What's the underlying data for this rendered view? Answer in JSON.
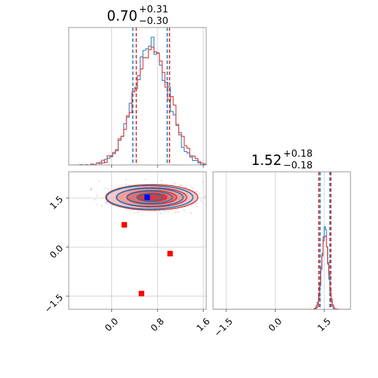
{
  "chart_data": {
    "type": "corner",
    "colors": {
      "series_a": "#1f77b4",
      "series_b": "#d62728",
      "marker_truth": "#0000ff",
      "marker_other": "#ff0000"
    },
    "parameters": [
      {
        "id": "p1",
        "title_value": "0.70",
        "title_plus": "+0.31",
        "title_minus": "−0.30",
        "range": [
          -0.75,
          1.65
        ],
        "ticks": [
          0.0,
          0.8,
          1.6
        ],
        "tick_labels": [
          "0.0",
          "0.8",
          "1.6"
        ],
        "hist_center_a": 0.68,
        "hist_sigma_a": 0.3,
        "hist_center_b": 0.7,
        "hist_sigma_b": 0.31,
        "quantile_lines_a": [
          0.37,
          0.97
        ],
        "quantile_lines_b": [
          0.43,
          1.01
        ]
      },
      {
        "id": "p2",
        "title_value": "1.52",
        "title_plus": "+0.18",
        "title_minus": "−0.18",
        "range": [
          -1.9,
          2.3
        ],
        "ticks": [
          -1.5,
          0.0,
          1.5
        ],
        "tick_labels": [
          "−1.5",
          "0.0",
          "1.5"
        ],
        "hist_center_a": 1.52,
        "hist_sigma_a": 0.09,
        "hist_center_b": 1.52,
        "hist_sigma_b": 0.1,
        "quantile_lines_a": [
          1.37,
          1.67
        ],
        "quantile_lines_b": [
          1.33,
          1.7
        ]
      }
    ],
    "scatter_markers": [
      {
        "x": 0.62,
        "y": 1.52,
        "color": "marker_truth"
      },
      {
        "x": 0.22,
        "y": 0.68,
        "color": "marker_other"
      },
      {
        "x": 1.02,
        "y": -0.2,
        "color": "marker_other"
      },
      {
        "x": 0.52,
        "y": -1.42,
        "color": "marker_other"
      }
    ],
    "joint_center": [
      0.7,
      1.52
    ],
    "joint_sigma": [
      0.35,
      0.17
    ],
    "grid": true
  }
}
